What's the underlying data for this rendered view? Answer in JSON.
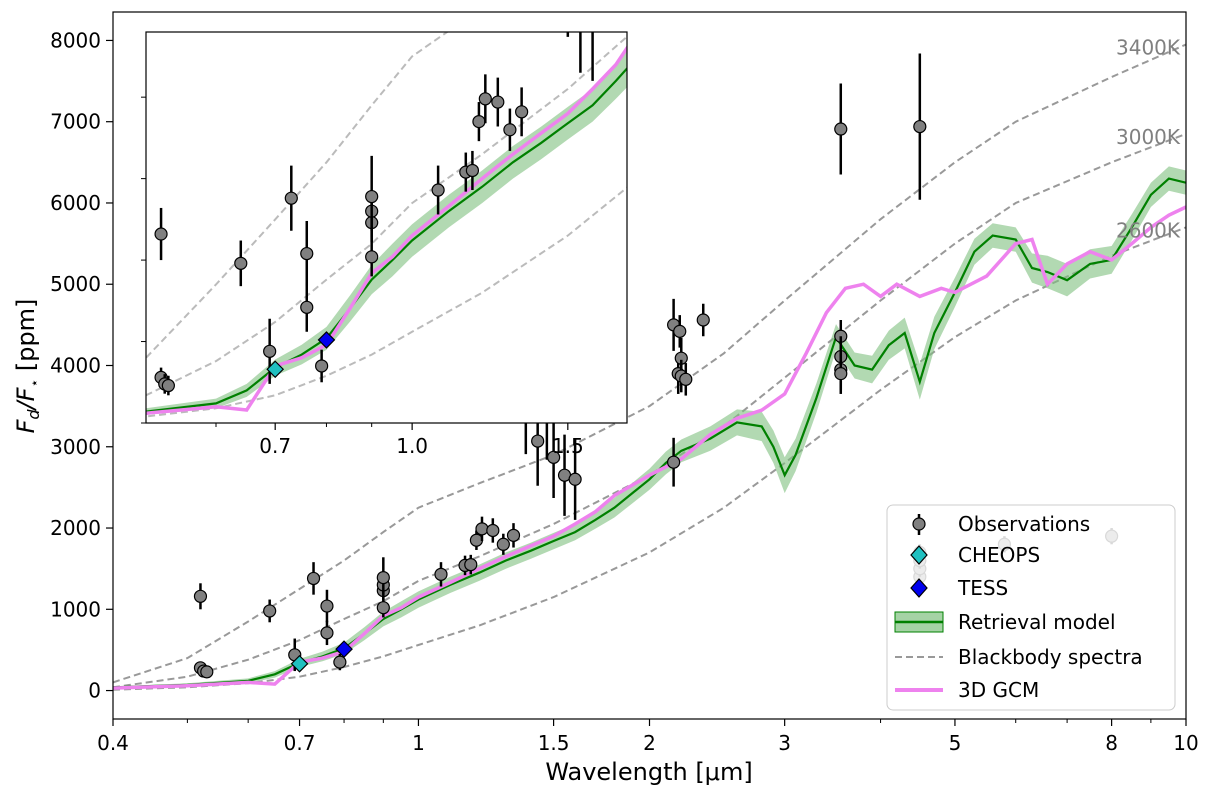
{
  "chart_data": {
    "type": "line",
    "xlabel": "Wavelength [μm]",
    "ylabel": "F_d/F_⋆ [ppm]",
    "ylabel_main": "F",
    "ylabel_sub1": "d",
    "ylabel_mid": "/F",
    "ylabel_sub2": "⋆",
    "ylabel_unit": " [ppm]",
    "x_scale": "log",
    "xlim": [
      0.4,
      10
    ],
    "ylim": [
      -350,
      8350
    ],
    "x_ticks": [
      0.4,
      0.7,
      1,
      1.5,
      2,
      3,
      5,
      8,
      10
    ],
    "x_tick_labels": [
      "0.4",
      "0.7",
      "1",
      "1.5",
      "2",
      "3",
      "5",
      "8",
      "10"
    ],
    "y_ticks": [
      0,
      1000,
      2000,
      3000,
      4000,
      5000,
      6000,
      7000,
      8000
    ],
    "y_tick_labels": [
      "0",
      "1000",
      "2000",
      "3000",
      "4000",
      "5000",
      "6000",
      "7000",
      "8000"
    ],
    "legend_position": "lower-right",
    "legend": [
      "Observations",
      "CHEOPS",
      "TESS",
      "Retrieval model",
      "Blackbody spectra",
      "3D GCM"
    ],
    "colors": {
      "observations": "#808080",
      "cheops": "#20c0c0",
      "tess": "#0000ee",
      "retrieval": "#008000",
      "retrieval_band": "#7fc07f",
      "blackbody": "#999999",
      "gcm": "#ee82ee"
    },
    "blackbody": [
      {
        "label": "3400K",
        "x": [
          0.4,
          0.5,
          0.6,
          0.7,
          0.8,
          0.9,
          1.0,
          1.2,
          1.5,
          2.0,
          2.5,
          3.0,
          4.0,
          5.0,
          6.0,
          8.0,
          10.0
        ],
        "y": [
          100,
          400,
          850,
          1250,
          1600,
          1950,
          2250,
          2550,
          2900,
          3500,
          4150,
          4800,
          5800,
          6500,
          7000,
          7550,
          7950
        ]
      },
      {
        "label": "3000K",
        "x": [
          0.4,
          0.5,
          0.6,
          0.7,
          0.8,
          0.9,
          1.0,
          1.2,
          1.5,
          2.0,
          2.5,
          3.0,
          4.0,
          5.0,
          6.0,
          8.0,
          10.0
        ],
        "y": [
          40,
          170,
          380,
          620,
          880,
          1100,
          1350,
          1650,
          2050,
          2650,
          3250,
          3850,
          4800,
          5500,
          6000,
          6500,
          6850
        ]
      },
      {
        "label": "2600K",
        "x": [
          0.4,
          0.5,
          0.6,
          0.7,
          0.8,
          0.9,
          1.0,
          1.2,
          1.5,
          2.0,
          2.5,
          3.0,
          4.0,
          5.0,
          6.0,
          8.0,
          10.0
        ],
        "y": [
          10,
          40,
          90,
          170,
          290,
          420,
          560,
          800,
          1150,
          1700,
          2250,
          2800,
          3700,
          4350,
          4800,
          5350,
          5700
        ]
      }
    ],
    "retrieval": {
      "x": [
        0.4,
        0.5,
        0.6,
        0.65,
        0.7,
        0.75,
        0.8,
        0.85,
        0.9,
        0.95,
        1.0,
        1.1,
        1.2,
        1.3,
        1.4,
        1.5,
        1.6,
        1.7,
        1.8,
        2.0,
        2.1,
        2.2,
        2.4,
        2.6,
        2.8,
        2.9,
        3.0,
        3.1,
        3.3,
        3.5,
        3.7,
        3.9,
        4.1,
        4.3,
        4.5,
        4.7,
        5.0,
        5.3,
        5.6,
        6.0,
        6.3,
        6.6,
        7.0,
        7.5,
        8.0,
        8.5,
        9.0,
        9.5,
        10.0
      ],
      "y": [
        40,
        70,
        120,
        200,
        340,
        420,
        520,
        700,
        880,
        1000,
        1120,
        1300,
        1450,
        1600,
        1720,
        1840,
        1950,
        2100,
        2250,
        2600,
        2800,
        2950,
        3100,
        3300,
        3250,
        3000,
        2650,
        2900,
        3600,
        4350,
        4000,
        3950,
        4250,
        4400,
        3800,
        4400,
        4900,
        5400,
        5600,
        5550,
        5200,
        5150,
        5050,
        5250,
        5300,
        5700,
        6100,
        6300,
        6250
      ],
      "band": [
        10,
        20,
        30,
        40,
        50,
        60,
        70,
        80,
        90,
        100,
        100,
        100,
        100,
        100,
        100,
        100,
        100,
        110,
        120,
        130,
        140,
        140,
        150,
        160,
        180,
        200,
        220,
        200,
        180,
        160,
        160,
        170,
        180,
        190,
        220,
        200,
        180,
        160,
        150,
        150,
        180,
        200,
        200,
        180,
        170,
        160,
        150,
        150,
        150
      ]
    },
    "gcm": {
      "x": [
        0.4,
        0.5,
        0.6,
        0.65,
        0.7,
        0.75,
        0.8,
        0.85,
        0.9,
        0.95,
        1.0,
        1.1,
        1.2,
        1.3,
        1.4,
        1.5,
        1.6,
        1.7,
        1.8,
        2.0,
        2.2,
        2.4,
        2.6,
        2.8,
        3.0,
        3.2,
        3.4,
        3.6,
        3.8,
        4.0,
        4.2,
        4.5,
        4.8,
        5.0,
        5.5,
        6.0,
        6.3,
        6.6,
        7.0,
        7.5,
        8.0,
        8.5,
        9.0,
        9.5,
        10.0
      ],
      "y": [
        30,
        60,
        100,
        80,
        350,
        400,
        480,
        700,
        920,
        1020,
        1150,
        1330,
        1500,
        1650,
        1780,
        1900,
        2050,
        2200,
        2400,
        2650,
        2850,
        3150,
        3350,
        3450,
        3650,
        4150,
        4650,
        4950,
        5000,
        4850,
        5000,
        4850,
        4950,
        4900,
        5100,
        5500,
        5550,
        5000,
        5250,
        5400,
        5300,
        5500,
        5700,
        5850,
        5950
      ]
    },
    "observations": {
      "x": [
        0.52,
        0.52,
        0.525,
        0.53,
        0.64,
        0.69,
        0.73,
        0.76,
        0.76,
        0.79,
        0.9,
        0.9,
        0.9,
        0.9,
        1.07,
        1.15,
        1.17,
        1.19,
        1.21,
        1.25,
        1.29,
        1.33,
        1.38,
        1.43,
        1.47,
        1.5,
        1.55,
        1.6,
        2.15,
        2.15,
        2.18,
        2.19,
        2.2,
        2.2,
        2.23,
        2.35,
        3.55,
        3.55,
        3.55,
        3.55,
        3.55,
        4.5,
        4.5,
        4.5,
        4.5,
        4.5,
        5.8,
        8.0
      ],
      "y": [
        1160,
        280,
        240,
        230,
        980,
        440,
        1380,
        1040,
        710,
        350,
        1230,
        1300,
        1020,
        1390,
        1430,
        1540,
        1550,
        1850,
        1990,
        1970,
        1800,
        1910,
        3460,
        3070,
        3390,
        2870,
        2650,
        2600,
        2810,
        4500,
        3900,
        4420,
        4090,
        3870,
        3830,
        4560,
        4360,
        4110,
        3950,
        3900,
        6910,
        6940,
        1400,
        1500,
        1600,
        1700,
        1800,
        1900
      ],
      "err": [
        160,
        60,
        60,
        60,
        140,
        200,
        200,
        200,
        150,
        100,
        120,
        120,
        120,
        250,
        150,
        120,
        120,
        120,
        150,
        150,
        130,
        150,
        550,
        550,
        550,
        500,
        500,
        500,
        300,
        320,
        250,
        200,
        250,
        200,
        200,
        200,
        200,
        250,
        250,
        250,
        560,
        900,
        100,
        100,
        100,
        100,
        100,
        100
      ]
    },
    "cheops": {
      "x": [
        0.7
      ],
      "y": [
        330
      ]
    },
    "tess": {
      "x": [
        0.8
      ],
      "y": [
        510
      ]
    },
    "inset": {
      "xlim": [
        0.5,
        1.75
      ],
      "ylim": [
        0,
        2400
      ],
      "x_ticks": [
        0.7,
        1.0,
        1.5
      ],
      "x_tick_labels": [
        "0.7",
        "1.0",
        "1.5"
      ],
      "y_ticks": [
        0,
        500,
        1000,
        1500,
        2000
      ]
    }
  }
}
